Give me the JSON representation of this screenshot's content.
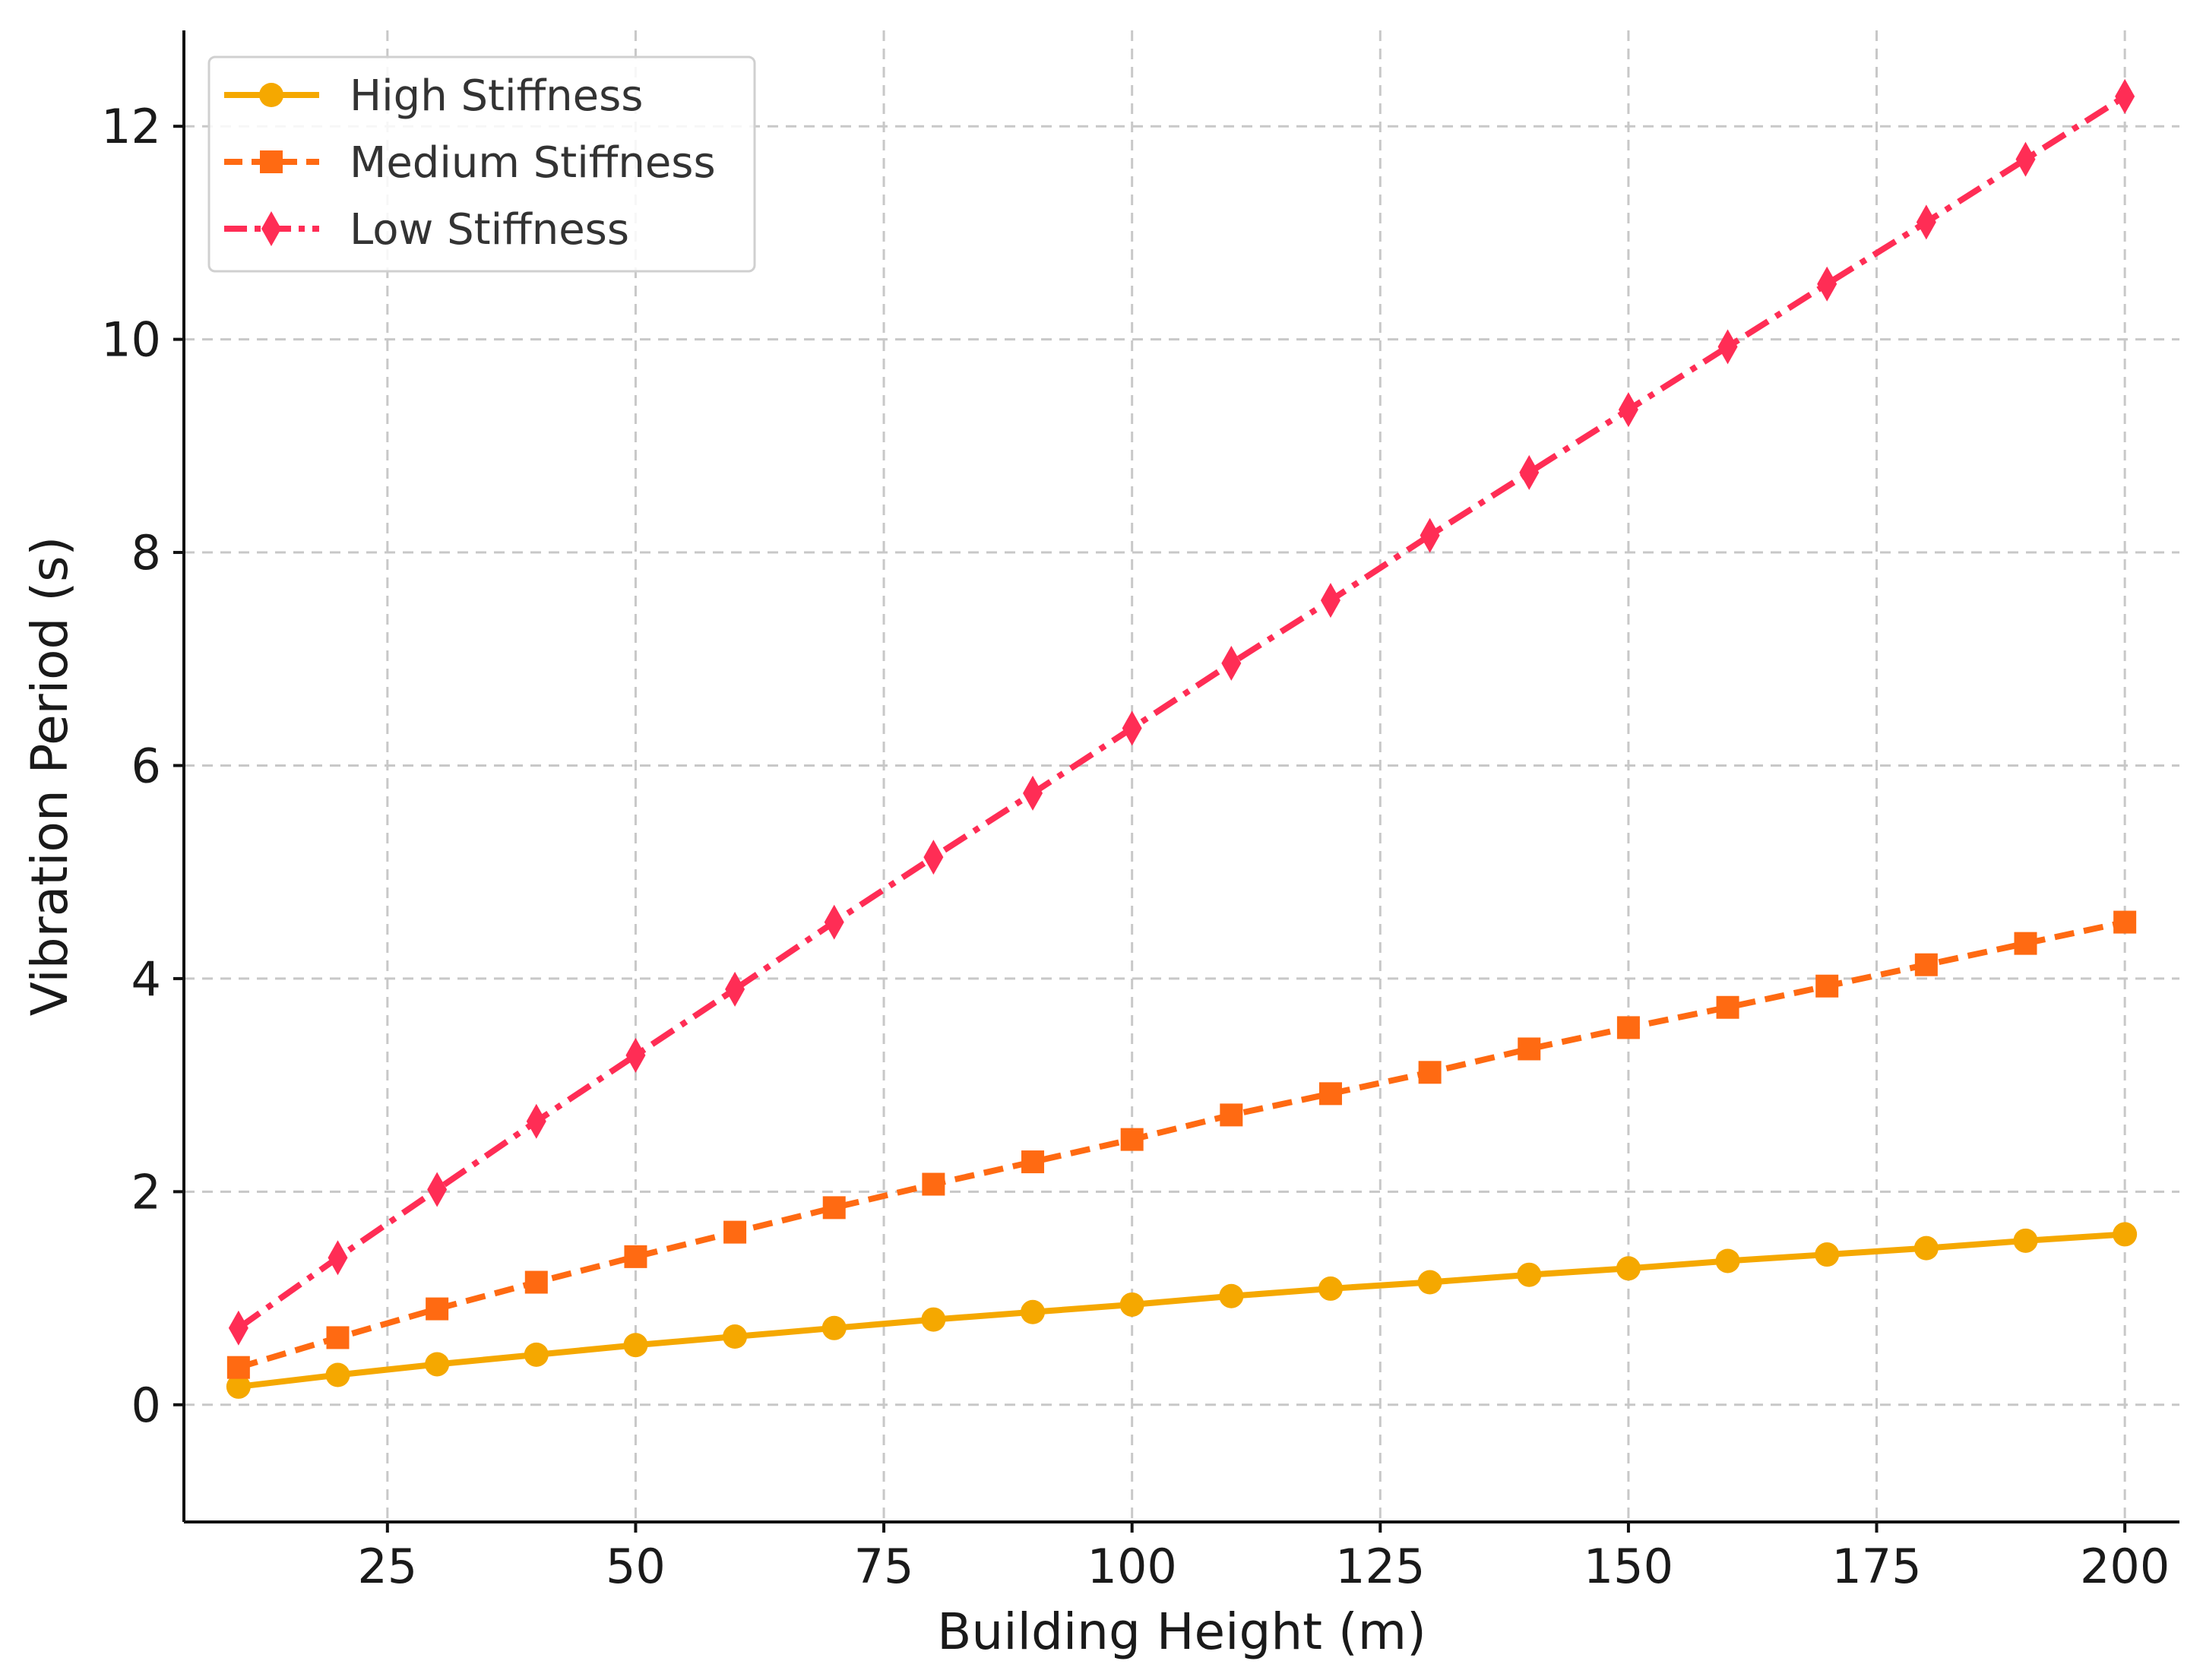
{
  "chart_data": {
    "type": "line",
    "title": "",
    "xlabel": "Building Height (m)",
    "ylabel": "Vibration Period (s)",
    "xlim": [
      4.5,
      205.5
    ],
    "ylim": [
      -1.1,
      12.9
    ],
    "xticks": [
      25,
      50,
      75,
      100,
      125,
      150,
      175,
      200
    ],
    "yticks": [
      0,
      2,
      4,
      6,
      8,
      10,
      12
    ],
    "grid": true,
    "legend_position": "top-left",
    "x": [
      10,
      20,
      30,
      40,
      50,
      60,
      70,
      80,
      90,
      100,
      110,
      120,
      130,
      140,
      150,
      160,
      170,
      180,
      190,
      200
    ],
    "series": [
      {
        "name": "High Stiffness",
        "color": "#f5a800",
        "line_style": "solid",
        "marker": "circle",
        "values": [
          0.17,
          0.28,
          0.38,
          0.47,
          0.56,
          0.64,
          0.72,
          0.8,
          0.87,
          0.94,
          1.02,
          1.09,
          1.15,
          1.22,
          1.28,
          1.35,
          1.41,
          1.47,
          1.54,
          1.6
        ]
      },
      {
        "name": "Medium Stiffness",
        "color": "#ff6a12",
        "line_style": "dashed",
        "marker": "square",
        "values": [
          0.35,
          0.63,
          0.9,
          1.15,
          1.39,
          1.62,
          1.85,
          2.07,
          2.28,
          2.49,
          2.72,
          2.92,
          3.12,
          3.34,
          3.54,
          3.73,
          3.93,
          4.13,
          4.33,
          4.53
        ]
      },
      {
        "name": "Low Stiffness",
        "color": "#ff2d55",
        "line_style": "dashdot",
        "marker": "diamond",
        "values": [
          0.72,
          1.38,
          2.02,
          2.66,
          3.28,
          3.9,
          4.53,
          5.14,
          5.74,
          6.35,
          6.96,
          7.55,
          8.16,
          8.75,
          9.34,
          9.93,
          10.52,
          11.1,
          11.69,
          12.28
        ]
      }
    ]
  }
}
